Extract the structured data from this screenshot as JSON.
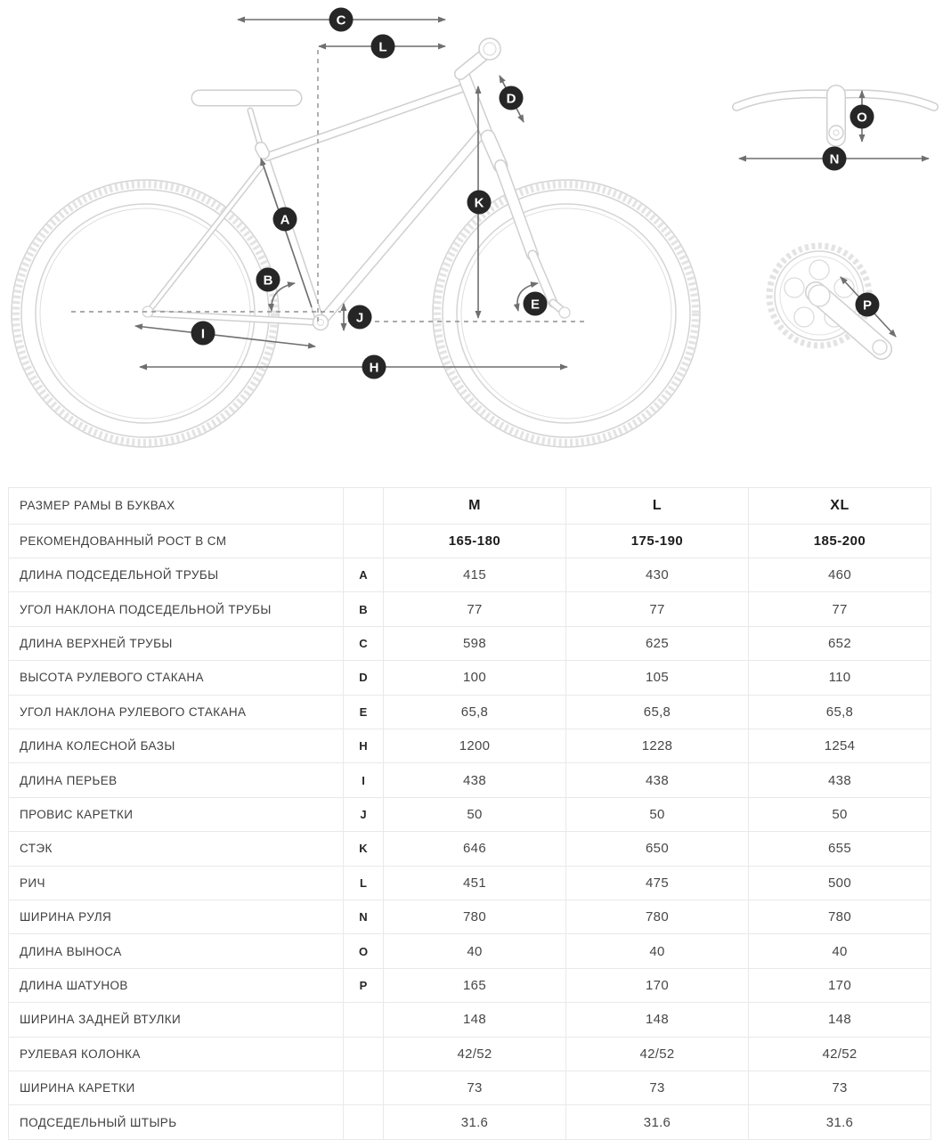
{
  "diagram": {
    "markers": {
      "a": "A",
      "b": "B",
      "c": "C",
      "d": "D",
      "e": "E",
      "h": "H",
      "i": "I",
      "j": "J",
      "k": "K",
      "l": "L",
      "n": "N",
      "o": "O",
      "p": "P"
    },
    "colors": {
      "badge": "#262626",
      "badge_text": "#ffffff",
      "bike_line": "#d4d4d4",
      "dimension_line": "#6f6f6f"
    }
  },
  "table": {
    "size_row": {
      "label": "РАЗМЕР РАМЫ В БУКВАХ",
      "letter": "",
      "values": [
        "M",
        "L",
        "XL"
      ]
    },
    "height_row": {
      "label": "РЕКОМЕНДОВАННЫЙ РОСТ В СМ",
      "letter": "",
      "values": [
        "165-180",
        "175-190",
        "185-200"
      ]
    },
    "rows": [
      {
        "label": "ДЛИНА ПОДСЕДЕЛЬНОЙ ТРУБЫ",
        "letter": "A",
        "values": [
          "415",
          "430",
          "460"
        ]
      },
      {
        "label": "УГОЛ НАКЛОНА ПОДСЕДЕЛЬНОЙ ТРУБЫ",
        "letter": "B",
        "values": [
          "77",
          "77",
          "77"
        ]
      },
      {
        "label": "ДЛИНА ВЕРХНЕЙ ТРУБЫ",
        "letter": "C",
        "values": [
          "598",
          "625",
          "652"
        ]
      },
      {
        "label": "ВЫСОТА РУЛЕВОГО СТАКАНА",
        "letter": "D",
        "values": [
          "100",
          "105",
          "110"
        ]
      },
      {
        "label": "УГОЛ НАКЛОНА РУЛЕВОГО СТАКАНА",
        "letter": "E",
        "values": [
          "65,8",
          "65,8",
          "65,8"
        ]
      },
      {
        "label": "ДЛИНА КОЛЕСНОЙ БАЗЫ",
        "letter": "H",
        "values": [
          "1200",
          "1228",
          "1254"
        ]
      },
      {
        "label": "ДЛИНА ПЕРЬЕВ",
        "letter": "I",
        "values": [
          "438",
          "438",
          "438"
        ]
      },
      {
        "label": "ПРОВИС КАРЕТКИ",
        "letter": "J",
        "values": [
          "50",
          "50",
          "50"
        ]
      },
      {
        "label": "СТЭК",
        "letter": "K",
        "values": [
          "646",
          "650",
          "655"
        ]
      },
      {
        "label": "РИЧ",
        "letter": "L",
        "values": [
          "451",
          "475",
          "500"
        ]
      },
      {
        "label": "ШИРИНА РУЛЯ",
        "letter": "N",
        "values": [
          "780",
          "780",
          "780"
        ]
      },
      {
        "label": "ДЛИНА ВЫНОСА",
        "letter": "O",
        "values": [
          "40",
          "40",
          "40"
        ]
      },
      {
        "label": "ДЛИНА ШАТУНОВ",
        "letter": "P",
        "values": [
          "165",
          "170",
          "170"
        ]
      },
      {
        "label": "ШИРИНА ЗАДНЕЙ ВТУЛКИ",
        "letter": "",
        "values": [
          "148",
          "148",
          "148"
        ]
      },
      {
        "label": "РУЛЕВАЯ КОЛОНКА",
        "letter": "",
        "values": [
          "42/52",
          "42/52",
          "42/52"
        ]
      },
      {
        "label": "ШИРИНА КАРЕТКИ",
        "letter": "",
        "values": [
          "73",
          "73",
          "73"
        ]
      },
      {
        "label": "ПОДСЕДЕЛЬНЫЙ ШТЫРЬ",
        "letter": "",
        "values": [
          "31.6",
          "31.6",
          "31.6"
        ]
      }
    ]
  }
}
